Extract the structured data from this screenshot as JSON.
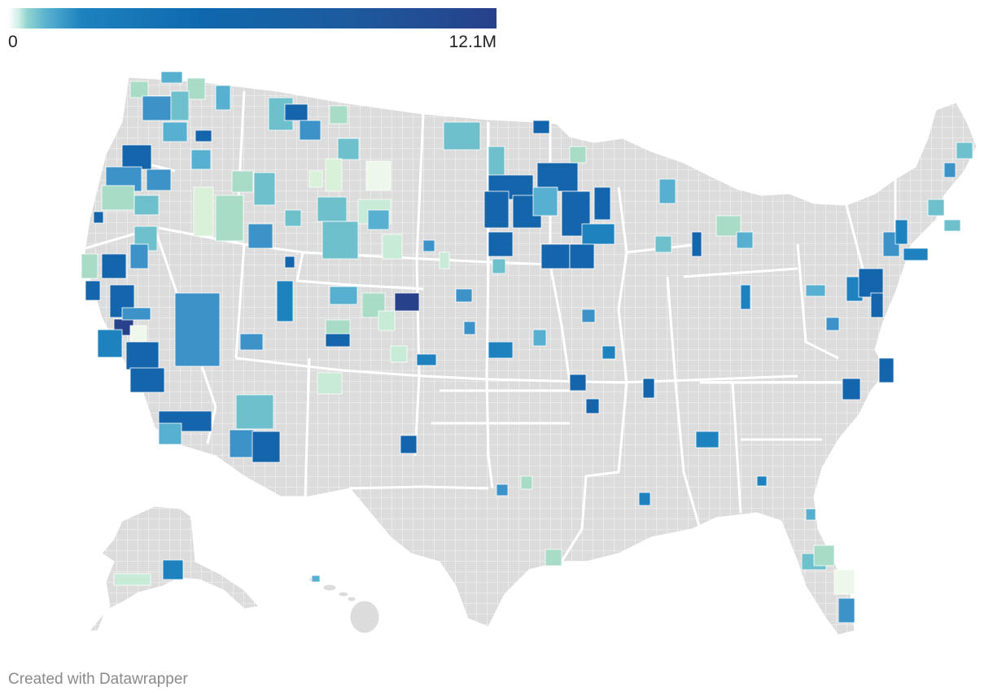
{
  "legend": {
    "min_label": "0",
    "max_label": "12.1M",
    "gradient_colors": [
      "#ffffff",
      "#c7ebd6",
      "#8fd3cf",
      "#57b0cf",
      "#1e82bf",
      "#0f68ad",
      "#27418a"
    ]
  },
  "credit": "Created with Datawrapper",
  "colors": {
    "no_data": "#dcdcdc",
    "county_border": "#ffffff"
  }
}
